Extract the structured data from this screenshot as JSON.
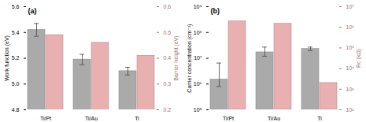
{
  "chart_data": [
    {
      "type": "bar",
      "title": "(a)",
      "categories": [
        "Ti/Pt",
        "Ti/Au",
        "Ti"
      ],
      "ylabel": "Work function (eV)",
      "y2label": "Barrier height (eV)",
      "ylim": [
        4.8,
        5.6
      ],
      "yticks": [
        4.8,
        {
          "value": 5.0,
          "label": "5.0"
        },
        5.2,
        5.4,
        5.6
      ],
      "y2lim": [
        0.2,
        0.6
      ],
      "y2ticks": [
        0.2,
        0.3,
        0.4,
        0.5,
        0.6
      ],
      "series": [
        {
          "color": "#aaaaaa",
          "values": [
            5.42,
            5.19,
            5.1
          ],
          "error": [
            0.05,
            0.04,
            0.03
          ]
        },
        {
          "color": "#e8b0b0",
          "values": [
            0.49,
            0.46,
            0.41
          ],
          "axis": "y2"
        }
      ]
    },
    {
      "type": "bar",
      "title": "(b)",
      "log": true,
      "categories": [
        "Ti/Pt",
        "Ti/Au",
        "Ti"
      ],
      "ylabel": "Carrier concentration (cm⁻²)",
      "y2label": "Rc (kΩ)",
      "ylim": [
        100000,
        1000000000
      ],
      "yticks": [
        {
          "value": 100000,
          "label": "10⁵"
        },
        {
          "value": 1000000,
          "label": "10⁶"
        },
        {
          "value": 10000000,
          "label": "10⁷"
        },
        {
          "value": 100000000,
          "label": "10⁸"
        },
        {
          "value": 1000000000,
          "label": "10⁹"
        }
      ],
      "y2lim": [
        100,
        10000000
      ],
      "y2ticks": [
        {
          "value": 100,
          "label": "10²"
        },
        {
          "value": 1000,
          "label": "10³"
        },
        {
          "value": 10000,
          "label": "10⁴"
        },
        {
          "value": 100000,
          "label": "10⁵"
        },
        {
          "value": 1000000,
          "label": "10⁶"
        },
        {
          "value": 10000000,
          "label": "10⁷"
        }
      ],
      "series": [
        {
          "color": "#aaaaaa",
          "values": [
            1500000,
            17000000,
            23000000
          ],
          "error_low": [
            700000,
            5000000,
            3000000
          ],
          "error_high": [
            5000000,
            10000000,
            4000000
          ]
        },
        {
          "color": "#e8b0b0",
          "values": [
            2000000,
            1500000,
            2000
          ],
          "axis": "y2"
        }
      ]
    }
  ]
}
